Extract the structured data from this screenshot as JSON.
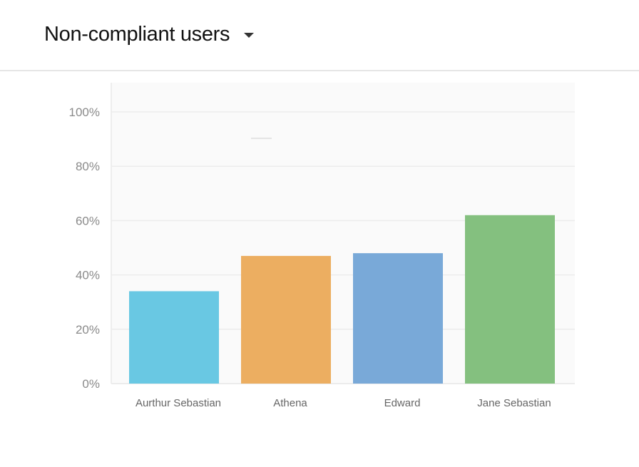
{
  "header": {
    "title": "Non-compliant users",
    "dropdown_icon": "caret-down-icon"
  },
  "chart_data": {
    "type": "bar",
    "title": "",
    "xlabel": "",
    "ylabel": "",
    "categories": [
      "Aurthur Sebastian",
      "Athena",
      "Edward",
      "Jane Sebastian"
    ],
    "values": [
      34,
      47,
      48,
      62
    ],
    "colors": [
      "#69c8e3",
      "#ecae61",
      "#79a9d8",
      "#84c07f"
    ],
    "ylim": [
      0,
      100
    ],
    "yticks": [
      0,
      20,
      40,
      60,
      80,
      100
    ],
    "ytick_labels": [
      "0%",
      "20%",
      "40%",
      "60%",
      "80%",
      "100%"
    ],
    "grid": true,
    "legend": "none"
  }
}
